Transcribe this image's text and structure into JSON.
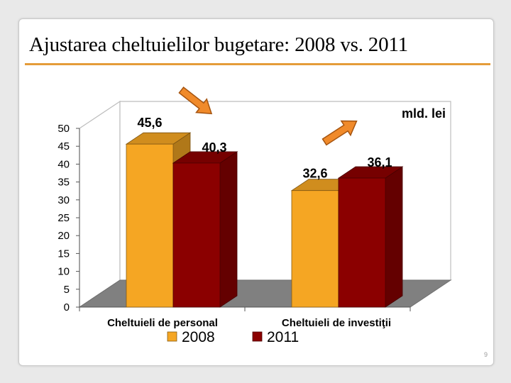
{
  "slide": {
    "title": "Ajustarea cheltuielilor bugetare: 2008 vs. 2011",
    "page_number": "9",
    "accent_color": "#e59c3a"
  },
  "chart_data": {
    "type": "bar",
    "title": "",
    "unit_label": "mld. lei",
    "categories": [
      "Cheltuieli de personal",
      "Cheltuieli de investiţii"
    ],
    "series": [
      {
        "name": "2008",
        "values": [
          45.6,
          32.6
        ],
        "labels": [
          "45,6",
          "32,6"
        ],
        "color": "#f5a623"
      },
      {
        "name": "2011",
        "values": [
          40.3,
          36.1
        ],
        "labels": [
          "40,3",
          "36,1"
        ],
        "color": "#8b0000"
      }
    ],
    "ylim": [
      0,
      50
    ],
    "yticks": [
      0,
      5,
      10,
      15,
      20,
      25,
      30,
      35,
      40,
      45,
      50
    ],
    "legend_position": "bottom",
    "grid": false,
    "style": "3d",
    "arrows": [
      {
        "category": "Cheltuieli de personal",
        "direction": "down"
      },
      {
        "category": "Cheltuieli de investiţii",
        "direction": "up"
      }
    ]
  }
}
